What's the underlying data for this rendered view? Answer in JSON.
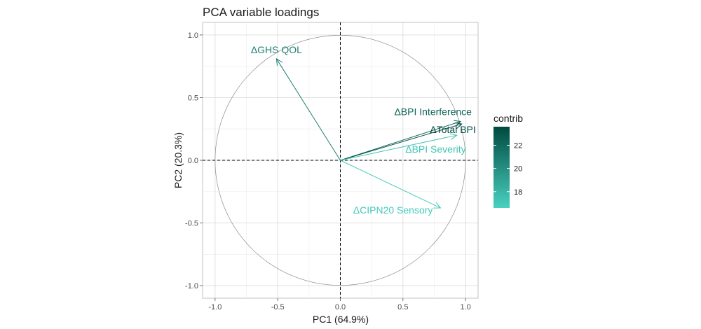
{
  "chart_data": {
    "type": "scatter",
    "subtype": "pca-variable-loadings",
    "title": "PCA variable loadings",
    "xlabel": "PC1 (64.9%)",
    "ylabel": "PC2 (20.3%)",
    "xlim": [
      -1.1,
      1.1
    ],
    "ylim": [
      -1.1,
      1.1
    ],
    "xticks": [
      -1.0,
      -0.5,
      0.0,
      0.5,
      1.0
    ],
    "yticks": [
      -1.0,
      -0.5,
      0.0,
      0.5,
      1.0
    ],
    "xtick_labels": [
      "-1.0",
      "-0.5",
      "0.0",
      "0.5",
      "1.0"
    ],
    "ytick_labels": [
      "-1.0",
      "-0.5",
      "0.0",
      "0.5",
      "1.0"
    ],
    "grid": true,
    "unit_circle": true,
    "reference_lines": [
      0,
      0
    ],
    "variables": [
      {
        "name": "ΔGHS QOL",
        "x": -0.51,
        "y": 0.81,
        "contrib": 20.8
      },
      {
        "name": "ΔBPI Interference",
        "x": 0.96,
        "y": 0.31,
        "contrib": 22.2
      },
      {
        "name": "ΔTotal BPI",
        "x": 0.97,
        "y": 0.29,
        "contrib": 23.4
      },
      {
        "name": "ΔBPI Severity",
        "x": 0.93,
        "y": 0.2,
        "contrib": 17.2
      },
      {
        "name": "ΔCIPN20 Sensory",
        "x": 0.8,
        "y": -0.38,
        "contrib": 16.9
      }
    ],
    "legend": {
      "title": "contrib",
      "position": "right",
      "range": [
        16.6,
        23.6
      ],
      "ticks": [
        18,
        20,
        22
      ],
      "tick_labels": [
        "18",
        "20",
        "22"
      ],
      "color_low": "#48d1c0",
      "color_high": "#00493f"
    }
  }
}
